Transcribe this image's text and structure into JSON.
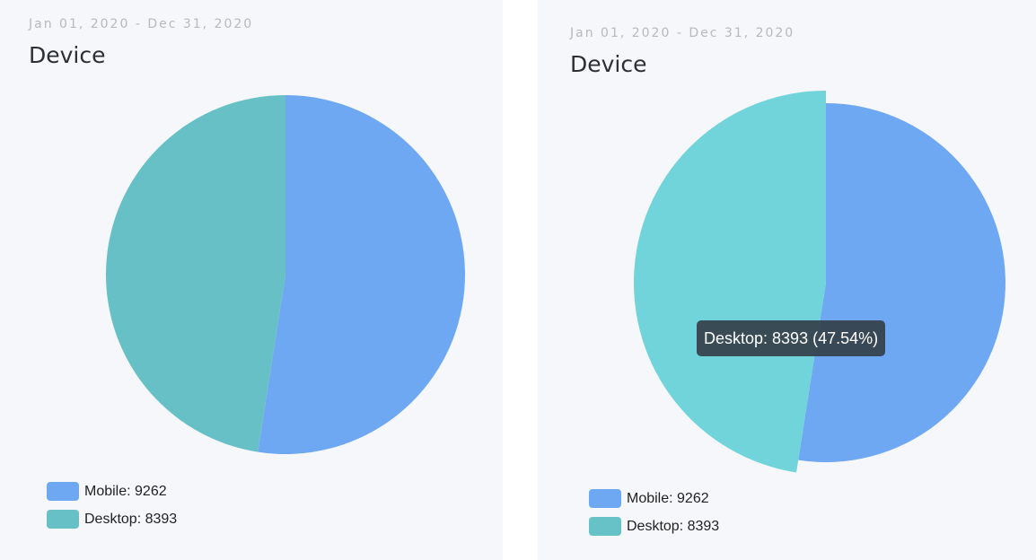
{
  "colors": {
    "mobile": "#6fa8f2",
    "desktop_left": "#66c0c6",
    "desktop_right_hover": "#70d4da",
    "desktop_legend_right": "#67c2c8"
  },
  "chart_data": [
    {
      "type": "pie",
      "date_range": "Jan 01, 2020 - Dec 31, 2020",
      "title": "Device",
      "slices": [
        {
          "label": "Mobile",
          "value": 9262,
          "legend": "Mobile: 9262"
        },
        {
          "label": "Desktop",
          "value": 8393,
          "legend": "Desktop: 8393"
        }
      ],
      "legend_position": "bottom-left"
    },
    {
      "type": "pie",
      "date_range": "Jan 01, 2020 - Dec 31, 2020",
      "title": "Device",
      "slices": [
        {
          "label": "Mobile",
          "value": 9262,
          "legend": "Mobile: 9262"
        },
        {
          "label": "Desktop",
          "value": 8393,
          "legend": "Desktop: 8393"
        }
      ],
      "legend_position": "bottom-left",
      "hovered_slice": "Desktop",
      "tooltip": "Desktop: 8393 (47.54%)"
    }
  ]
}
